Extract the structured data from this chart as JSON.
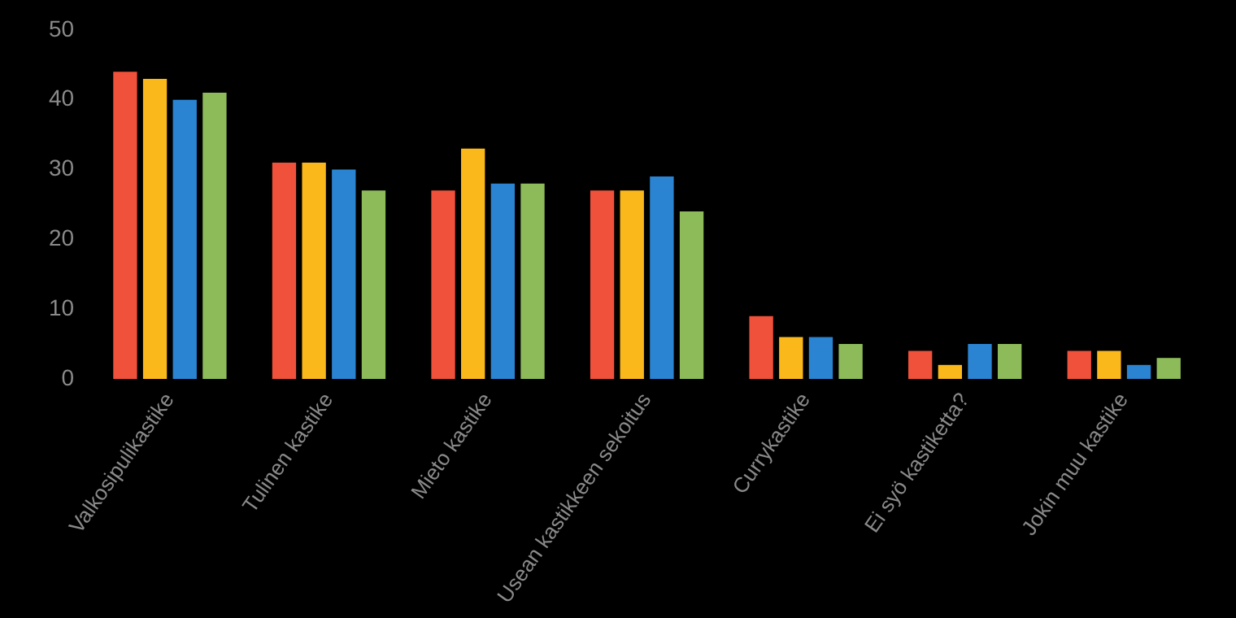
{
  "chart_data": {
    "type": "bar",
    "categories": [
      "Valkosipulikastike",
      "Tulinen kastike",
      "Mieto kastike",
      "Usean kastikkeen sekoitus",
      "Currykastike",
      "Ei syö kastiketta?",
      "Jokin muu kastike"
    ],
    "series": [
      {
        "color": "#f0513a",
        "values": [
          44,
          31,
          27,
          27,
          9,
          4,
          4
        ]
      },
      {
        "color": "#fbb81b",
        "values": [
          43,
          31,
          33,
          27,
          6,
          2,
          4
        ]
      },
      {
        "color": "#2a84d2",
        "values": [
          40,
          30,
          28,
          29,
          6,
          5,
          2
        ]
      },
      {
        "color": "#8dbb5a",
        "values": [
          41,
          27,
          28,
          24,
          5,
          5,
          3
        ]
      }
    ],
    "ylim": [
      0,
      50
    ],
    "yticks": [
      0,
      10,
      20,
      30,
      40,
      50
    ],
    "grid": false,
    "legend": false
  }
}
